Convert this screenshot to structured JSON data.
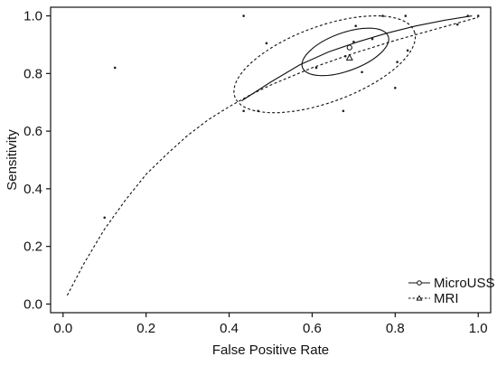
{
  "chart_data": {
    "type": "scatter",
    "title": "",
    "xlabel": "False Positive Rate",
    "ylabel": "Sensitivity",
    "xlim": [
      -0.03,
      1.03
    ],
    "ylim": [
      -0.03,
      1.03
    ],
    "x_ticks": [
      "0.0",
      "0.2",
      "0.4",
      "0.6",
      "0.8",
      "1.0"
    ],
    "y_ticks": [
      "0.0",
      "0.2",
      "0.4",
      "0.6",
      "0.8",
      "1.0"
    ],
    "grid": false,
    "legend_position": "bottom-right",
    "series": [
      {
        "name": "MicroUSS",
        "marker": "circle",
        "line_style": "solid",
        "color": "#111111",
        "summary_point": {
          "x": 0.69,
          "y": 0.89
        },
        "curve": [
          {
            "x": 0.43,
            "y": 0.705
          },
          {
            "x": 0.5,
            "y": 0.77
          },
          {
            "x": 0.57,
            "y": 0.83
          },
          {
            "x": 0.64,
            "y": 0.875
          },
          {
            "x": 0.71,
            "y": 0.91
          },
          {
            "x": 0.78,
            "y": 0.94
          },
          {
            "x": 0.85,
            "y": 0.965
          },
          {
            "x": 0.92,
            "y": 0.985
          },
          {
            "x": 0.985,
            "y": 1.0
          }
        ],
        "confidence_region": {
          "center": {
            "x": 0.68,
            "y": 0.875
          },
          "rx": 0.11,
          "ry": 0.03,
          "angle_deg": 20
        }
      },
      {
        "name": "MRI",
        "marker": "triangle",
        "line_style": "dashed",
        "color": "#111111",
        "summary_point": {
          "x": 0.69,
          "y": 0.855
        },
        "curve": [
          {
            "x": 0.01,
            "y": 0.03
          },
          {
            "x": 0.05,
            "y": 0.14
          },
          {
            "x": 0.1,
            "y": 0.26
          },
          {
            "x": 0.15,
            "y": 0.36
          },
          {
            "x": 0.2,
            "y": 0.45
          },
          {
            "x": 0.25,
            "y": 0.52
          },
          {
            "x": 0.3,
            "y": 0.585
          },
          {
            "x": 0.35,
            "y": 0.64
          },
          {
            "x": 0.4,
            "y": 0.685
          },
          {
            "x": 0.45,
            "y": 0.725
          },
          {
            "x": 0.5,
            "y": 0.76
          },
          {
            "x": 0.6,
            "y": 0.82
          },
          {
            "x": 0.7,
            "y": 0.87
          },
          {
            "x": 0.8,
            "y": 0.915
          },
          {
            "x": 0.9,
            "y": 0.955
          },
          {
            "x": 1.0,
            "y": 0.995
          }
        ],
        "confidence_region": {
          "center": {
            "x": 0.63,
            "y": 0.832
          },
          "rx": 0.23,
          "ry": 0.06,
          "angle_deg": 20
        }
      }
    ],
    "study_points": [
      {
        "x": 0.1,
        "y": 0.3
      },
      {
        "x": 0.125,
        "y": 0.82
      },
      {
        "x": 0.435,
        "y": 1.0
      },
      {
        "x": 0.435,
        "y": 0.67
      },
      {
        "x": 0.47,
        "y": 0.67
      },
      {
        "x": 0.49,
        "y": 0.905
      },
      {
        "x": 0.61,
        "y": 0.82
      },
      {
        "x": 0.675,
        "y": 0.67
      },
      {
        "x": 0.68,
        "y": 0.86
      },
      {
        "x": 0.7,
        "y": 0.91
      },
      {
        "x": 0.705,
        "y": 0.965
      },
      {
        "x": 0.72,
        "y": 0.805
      },
      {
        "x": 0.745,
        "y": 0.92
      },
      {
        "x": 0.77,
        "y": 1.0
      },
      {
        "x": 0.8,
        "y": 0.75
      },
      {
        "x": 0.805,
        "y": 0.84
      },
      {
        "x": 0.825,
        "y": 1.0
      },
      {
        "x": 0.83,
        "y": 0.88
      },
      {
        "x": 0.95,
        "y": 0.97
      },
      {
        "x": 0.975,
        "y": 1.0
      },
      {
        "x": 1.0,
        "y": 1.0
      }
    ]
  }
}
